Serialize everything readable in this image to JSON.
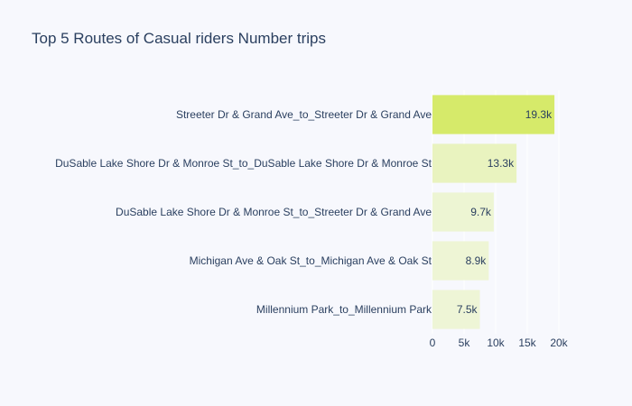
{
  "chart_data": {
    "type": "bar",
    "orientation": "horizontal",
    "title": "Top 5 Routes of Casual riders Number trips",
    "xlabel": "",
    "ylabel": "",
    "categories": [
      "Streeter Dr & Grand Ave_to_Streeter Dr & Grand Ave",
      "DuSable Lake Shore Dr & Monroe St_to_DuSable Lake Shore Dr & Monroe St",
      "DuSable Lake Shore Dr & Monroe St_to_Streeter Dr & Grand Ave",
      "Michigan Ave & Oak St_to_Michigan Ave & Oak St",
      "Millennium Park_to_Millennium Park"
    ],
    "values": [
      19300,
      13300,
      9700,
      8900,
      7500
    ],
    "data_labels": [
      "19.3k",
      "13.3k",
      "9.7k",
      "8.9k",
      "7.5k"
    ],
    "xlim": [
      0,
      20000
    ],
    "xticks": [
      0,
      5000,
      10000,
      15000,
      20000
    ],
    "xtick_labels": [
      "0",
      "5k",
      "10k",
      "15k",
      "20k"
    ],
    "grid": true,
    "colors": {
      "background": "#f7f8fd",
      "bar_scale_low": "#eef5d6",
      "bar_scale_high": "#d6ea6a",
      "grid": "#ffffff",
      "text": "#2a3f5f"
    }
  }
}
